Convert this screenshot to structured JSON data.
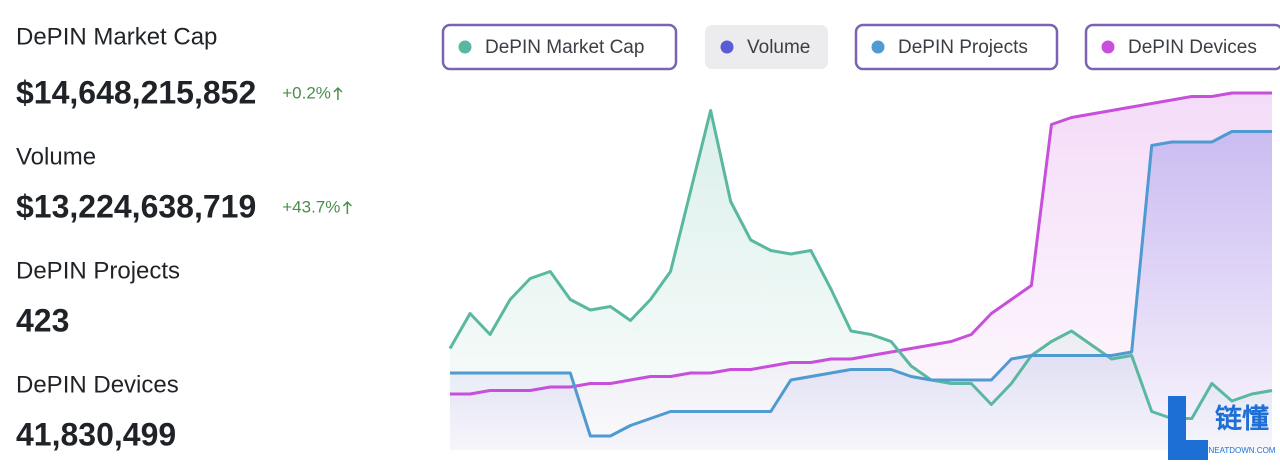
{
  "stats": [
    {
      "label": "DePIN Market Cap",
      "value": "$14,648,215,852",
      "change": "+0.2%"
    },
    {
      "label": "Volume",
      "value": "$13,224,638,719",
      "change": "+43.7%"
    },
    {
      "label": "DePIN Projects",
      "value": "423"
    },
    {
      "label": "DePIN Devices",
      "value": "41,830,499"
    }
  ],
  "chart_data": {
    "type": "line",
    "ylim": [
      0,
      105
    ],
    "series": [
      {
        "name": "DePIN Market Cap",
        "color": "#5bb8a0",
        "visible": true,
        "values": [
          29,
          39,
          33,
          43,
          49,
          51,
          43,
          40,
          41,
          37,
          43,
          51,
          74,
          97,
          71,
          60,
          57,
          56,
          57,
          46,
          34,
          33,
          31,
          24,
          20,
          19,
          19,
          13,
          19,
          27,
          31,
          34,
          30,
          26,
          27,
          11,
          9,
          9,
          19,
          14,
          16,
          17
        ]
      },
      {
        "name": "Volume",
        "color": "#5b5bd6",
        "visible": false,
        "values": [
          null,
          null,
          null,
          null,
          null,
          null,
          null,
          null,
          null,
          null,
          null,
          null,
          null,
          null,
          null,
          null,
          null,
          null,
          null,
          null,
          null,
          null,
          null,
          null,
          null,
          null,
          null,
          null,
          null,
          null,
          null,
          null,
          null,
          null,
          null,
          null,
          null,
          null,
          null,
          null,
          null,
          null
        ]
      },
      {
        "name": "DePIN Projects",
        "color": "#4f9ad0",
        "visible": true,
        "values": [
          22,
          22,
          22,
          22,
          22,
          22,
          22,
          4,
          4,
          7,
          9,
          11,
          11,
          11,
          11,
          11,
          11,
          20,
          21,
          22,
          23,
          23,
          23,
          21,
          20,
          20,
          20,
          20,
          26,
          27,
          27,
          27,
          27,
          27,
          28,
          87,
          88,
          88,
          88,
          91,
          91,
          91
        ]
      },
      {
        "name": "DePIN Devices",
        "color": "#c84fdb",
        "visible": true,
        "values": [
          16,
          16,
          17,
          17,
          17,
          18,
          18,
          19,
          19,
          20,
          21,
          21,
          22,
          22,
          23,
          23,
          24,
          25,
          25,
          26,
          26,
          27,
          28,
          29,
          30,
          31,
          33,
          39,
          43,
          47,
          93,
          95,
          96,
          97,
          98,
          99,
          100,
          101,
          101,
          102,
          102,
          102
        ]
      }
    ]
  },
  "watermark": {
    "logo": "链懂",
    "site": "NEATDOWN.COM"
  }
}
